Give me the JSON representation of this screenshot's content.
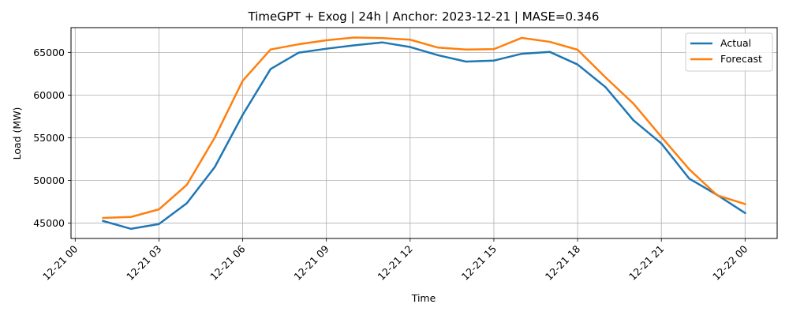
{
  "chart_data": {
    "type": "line",
    "title": "TimeGPT + Exog | 24h | Anchor: 2023-12-21 | MASE=0.346",
    "xlabel": "Time",
    "ylabel": "Load (MW)",
    "x": [
      "2023-12-21 01:00",
      "2023-12-21 02:00",
      "2023-12-21 03:00",
      "2023-12-21 04:00",
      "2023-12-21 05:00",
      "2023-12-21 06:00",
      "2023-12-21 07:00",
      "2023-12-21 08:00",
      "2023-12-21 09:00",
      "2023-12-21 10:00",
      "2023-12-21 11:00",
      "2023-12-21 12:00",
      "2023-12-21 13:00",
      "2023-12-21 14:00",
      "2023-12-21 15:00",
      "2023-12-21 16:00",
      "2023-12-21 17:00",
      "2023-12-21 18:00",
      "2023-12-21 19:00",
      "2023-12-21 20:00",
      "2023-12-21 21:00",
      "2023-12-21 22:00",
      "2023-12-21 23:00",
      "2023-12-22 00:00"
    ],
    "xlim": [
      "2023-12-20 23:51",
      "2023-12-22 01:09"
    ],
    "xticks": [
      {
        "label": "12-21 00",
        "hour": 0
      },
      {
        "label": "12-21 03",
        "hour": 3
      },
      {
        "label": "12-21 06",
        "hour": 6
      },
      {
        "label": "12-21 09",
        "hour": 9
      },
      {
        "label": "12-21 12",
        "hour": 12
      },
      {
        "label": "12-21 15",
        "hour": 15
      },
      {
        "label": "12-21 18",
        "hour": 18
      },
      {
        "label": "12-21 21",
        "hour": 21
      },
      {
        "label": "12-22 00",
        "hour": 24
      }
    ],
    "ylim": [
      43200,
      67900
    ],
    "yticks": [
      45000,
      50000,
      55000,
      60000,
      65000
    ],
    "grid": true,
    "legend_position": "top-right",
    "series": [
      {
        "name": "Actual",
        "color": "#1f77b4",
        "values": [
          45250,
          44330,
          44890,
          47330,
          51560,
          57680,
          63050,
          64960,
          65430,
          65830,
          66170,
          65630,
          64670,
          63920,
          64040,
          64840,
          65060,
          63580,
          60930,
          57050,
          54330,
          50210,
          48300,
          46180
        ]
      },
      {
        "name": "Forecast",
        "color": "#ff7f0e",
        "values": [
          45610,
          45720,
          46610,
          49480,
          55020,
          61670,
          65340,
          65950,
          66420,
          66740,
          66670,
          66490,
          65560,
          65330,
          65380,
          66700,
          66240,
          65310,
          62070,
          59000,
          55110,
          51300,
          48260,
          47230
        ]
      }
    ]
  }
}
